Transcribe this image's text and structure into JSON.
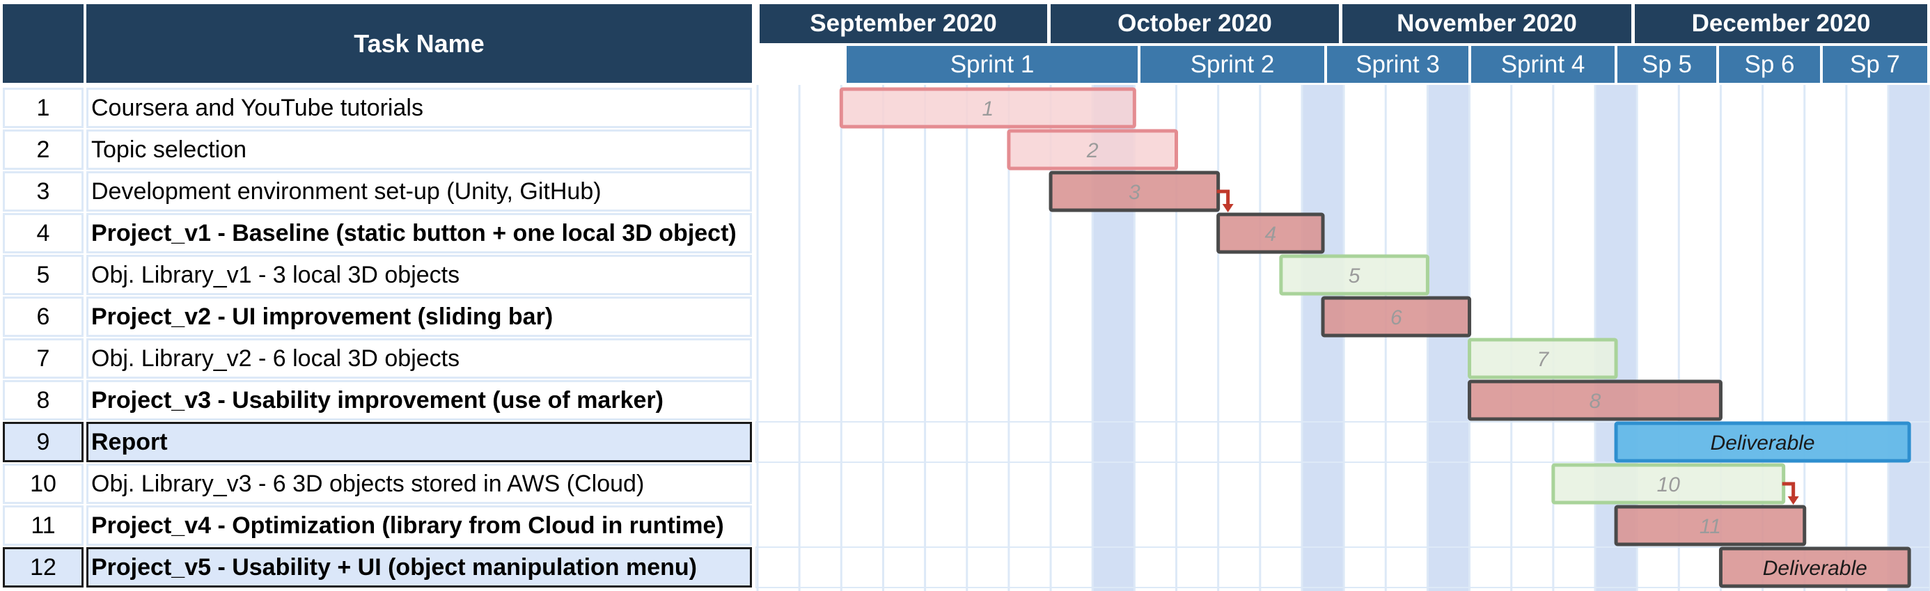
{
  "header": {
    "task_name_label": "Task Name"
  },
  "months": [
    {
      "label": "September 2020"
    },
    {
      "label": "October 2020"
    },
    {
      "label": "November 2020"
    },
    {
      "label": "December 2020"
    }
  ],
  "sprints": [
    {
      "label": "Sprint 1"
    },
    {
      "label": "Sprint 2"
    },
    {
      "label": "Sprint 3"
    },
    {
      "label": "Sprint 4"
    },
    {
      "label": "Sp 5"
    },
    {
      "label": "Sp 6"
    },
    {
      "label": "Sp 7"
    }
  ],
  "chart_data": {
    "type": "gantt",
    "tasks": [
      {
        "id": "1",
        "name": "Coursera and YouTube tutorials",
        "bold": false,
        "highlight": false,
        "start": 2,
        "end": 9,
        "style": "light-red",
        "label": "1"
      },
      {
        "id": "2",
        "name": "Topic selection",
        "bold": false,
        "highlight": false,
        "start": 6,
        "end": 10,
        "style": "light-red",
        "label": "2"
      },
      {
        "id": "3",
        "name": "Development environment set-up (Unity, GitHub)",
        "bold": false,
        "highlight": false,
        "start": 7,
        "end": 11,
        "style": "dark-red",
        "label": "3",
        "arrow_to_next": true
      },
      {
        "id": "4",
        "name": "Project_v1 - Baseline (static button + one local 3D object)",
        "bold": true,
        "highlight": false,
        "start": 11,
        "end": 13.5,
        "style": "dark-red",
        "label": "4"
      },
      {
        "id": "5",
        "name": "Obj. Library_v1 - 3 local 3D objects",
        "bold": false,
        "highlight": false,
        "start": 12.5,
        "end": 16,
        "style": "green",
        "label": "5"
      },
      {
        "id": "6",
        "name": "Project_v2 - UI improvement (sliding bar)",
        "bold": true,
        "highlight": false,
        "start": 13.5,
        "end": 17,
        "style": "dark-red",
        "label": "6"
      },
      {
        "id": "7",
        "name": "Obj. Library_v2 - 6 local 3D objects",
        "bold": false,
        "highlight": false,
        "start": 17,
        "end": 20.5,
        "style": "green",
        "label": "7"
      },
      {
        "id": "8",
        "name": "Project_v3 - Usability improvement (use of marker)",
        "bold": true,
        "highlight": false,
        "start": 17,
        "end": 23,
        "style": "dark-red",
        "label": "8"
      },
      {
        "id": "9",
        "name": "Report",
        "bold": true,
        "highlight": true,
        "start": 20.5,
        "end": 27.5,
        "style": "blue",
        "label": "Deliverable"
      },
      {
        "id": "10",
        "name": "Obj. Library_v3 - 6 3D objects stored in AWS (Cloud)",
        "bold": false,
        "highlight": false,
        "start": 19,
        "end": 24.5,
        "style": "green",
        "label": "10",
        "arrow_to_next": true
      },
      {
        "id": "11",
        "name": "Project_v4 - Optimization (library from Cloud in runtime)",
        "bold": true,
        "highlight": false,
        "start": 20.5,
        "end": 25,
        "style": "dark-red",
        "label": "11"
      },
      {
        "id": "12",
        "name": "Project_v5 - Usability + UI (object manipulation menu)",
        "bold": true,
        "highlight": true,
        "start": 23,
        "end": 27.5,
        "style": "dark-red",
        "label": "Deliverable"
      }
    ],
    "weekend_columns": [
      8,
      13,
      16,
      20,
      27
    ],
    "columns": 28,
    "colors": {
      "header_dark": "#22405d",
      "header_sprint": "#3c78aa",
      "weekend": "#d2dff4",
      "grid": "#dde9f7",
      "highlight_row": "#dbe7f9",
      "light_red_fill": "#f7d2d4",
      "light_red_stroke": "#e48c91",
      "dark_red_fill": "#d99695",
      "dark_red_stroke": "#4a4a4a",
      "green_fill": "#e8f2e1",
      "green_stroke": "#a9d39a",
      "blue_fill": "#63b8e8",
      "blue_stroke": "#2e8fcf",
      "arrow": "#c0392b"
    }
  }
}
